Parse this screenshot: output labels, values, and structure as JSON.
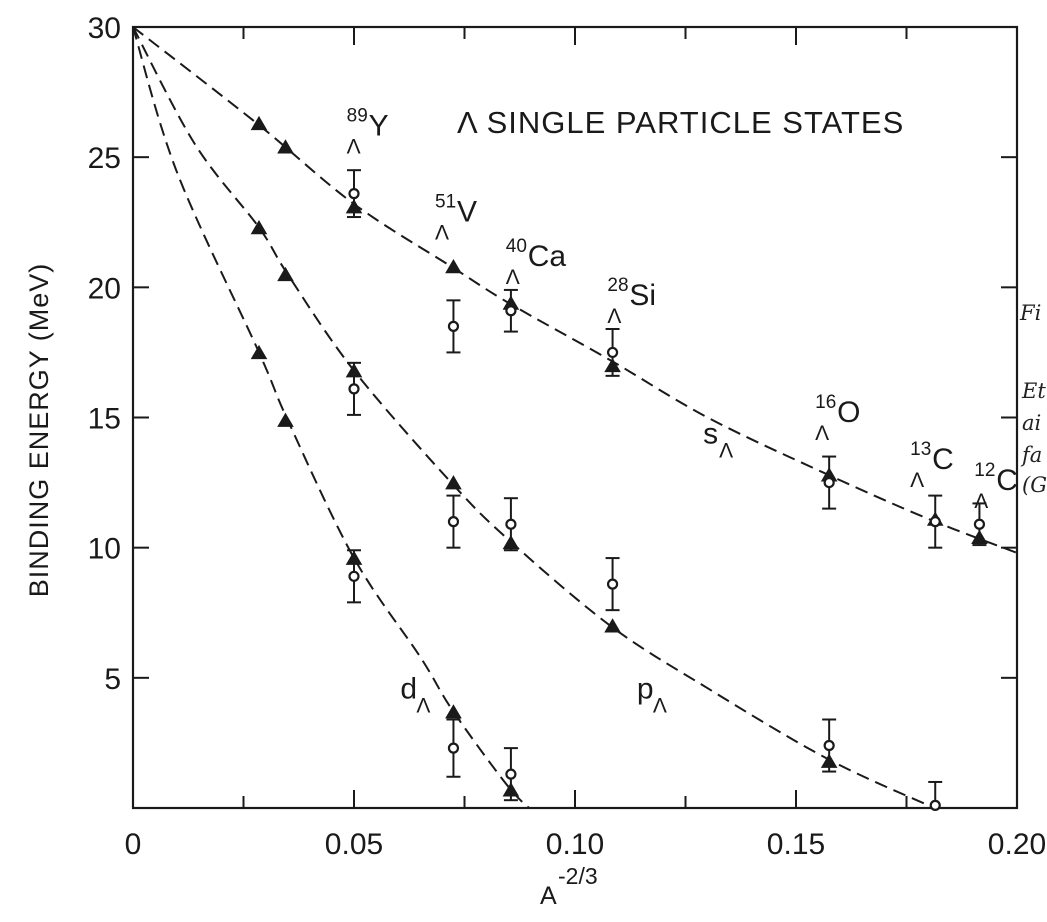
{
  "chart_data": {
    "type": "scatter",
    "title": "Λ SINGLE PARTICLE STATES",
    "xlabel": {
      "base": "A",
      "exponent": "-2/3"
    },
    "ylabel": "BINDING ENERGY (MeV)",
    "xlim": [
      0,
      0.2
    ],
    "ylim": [
      0,
      30
    ],
    "x_ticks": [
      {
        "value": 0,
        "label": "0"
      },
      {
        "value": 0.05,
        "label": "0.05"
      },
      {
        "value": 0.1,
        "label": "0.10"
      },
      {
        "value": 0.15,
        "label": "0.15"
      },
      {
        "value": 0.2,
        "label": "0.20"
      }
    ],
    "y_ticks": [
      {
        "value": 5,
        "label": "5"
      },
      {
        "value": 10,
        "label": "10"
      },
      {
        "value": 15,
        "label": "15"
      },
      {
        "value": 20,
        "label": "20"
      },
      {
        "value": 25,
        "label": "25"
      },
      {
        "value": 30,
        "label": "30"
      }
    ],
    "grid": false,
    "series": [
      {
        "name": "sΛ",
        "style": "dashed-curve",
        "curve": [
          [
            0,
            30
          ],
          [
            0.028,
            26.3
          ],
          [
            0.05,
            23.2
          ],
          [
            0.072,
            20.8
          ],
          [
            0.085,
            19.4
          ],
          [
            0.108,
            17.2
          ],
          [
            0.13,
            15.0
          ],
          [
            0.156,
            12.9
          ],
          [
            0.18,
            11.1
          ],
          [
            0.2,
            9.8
          ]
        ],
        "theory": [
          [
            0.0285,
            26.3
          ],
          [
            0.0345,
            25.4
          ],
          [
            0.05,
            23.1
          ],
          [
            0.0725,
            20.8
          ],
          [
            0.0855,
            19.4
          ],
          [
            0.1085,
            17.0
          ],
          [
            0.1575,
            12.8
          ],
          [
            0.1815,
            11.1
          ],
          [
            0.1915,
            10.4
          ]
        ],
        "experiment": [
          {
            "x": 0.05,
            "y": 23.6,
            "err": 0.9
          },
          {
            "x": 0.0855,
            "y": 19.1,
            "err": 0.8
          },
          {
            "x": 0.1085,
            "y": 17.5,
            "err": 0.9
          },
          {
            "x": 0.1575,
            "y": 12.5,
            "err": 1.0
          },
          {
            "x": 0.1815,
            "y": 11.0,
            "err": 1.0
          },
          {
            "x": 0.1915,
            "y": 10.9,
            "err": 0.8
          }
        ]
      },
      {
        "name": "pΛ",
        "style": "dashed-curve",
        "curve": [
          [
            0,
            30
          ],
          [
            0.014,
            25.5
          ],
          [
            0.0285,
            22.3
          ],
          [
            0.035,
            20.5
          ],
          [
            0.05,
            16.8
          ],
          [
            0.072,
            12.5
          ],
          [
            0.085,
            10.3
          ],
          [
            0.108,
            7.0
          ],
          [
            0.13,
            4.6
          ],
          [
            0.157,
            1.9
          ],
          [
            0.18,
            0.1
          ],
          [
            0.19,
            -0.6
          ]
        ],
        "theory": [
          [
            0.0285,
            22.3
          ],
          [
            0.0345,
            20.5
          ],
          [
            0.05,
            16.8
          ],
          [
            0.0725,
            12.5
          ],
          [
            0.0855,
            10.2
          ],
          [
            0.1085,
            7.0
          ],
          [
            0.1575,
            1.8
          ]
        ],
        "experiment": [
          {
            "x": 0.0725,
            "y": 18.5,
            "err": 1.0
          },
          {
            "x": 0.05,
            "y": 16.1,
            "err": 1.0
          },
          {
            "x": 0.0725,
            "y": 11.0,
            "err": 1.0
          },
          {
            "x": 0.0855,
            "y": 10.9,
            "err": 1.0
          },
          {
            "x": 0.1085,
            "y": 8.6,
            "err": 1.0
          },
          {
            "x": 0.1575,
            "y": 2.4,
            "err": 1.0
          },
          {
            "x": 0.1815,
            "y": 0.1,
            "err": 0.9
          }
        ]
      },
      {
        "name": "dΛ",
        "style": "dashed-curve",
        "curve": [
          [
            0,
            30
          ],
          [
            0.01,
            24.4
          ],
          [
            0.0285,
            17.5
          ],
          [
            0.035,
            14.9
          ],
          [
            0.05,
            9.6
          ],
          [
            0.065,
            5.8
          ],
          [
            0.0725,
            3.7
          ],
          [
            0.0855,
            0.7
          ],
          [
            0.092,
            -0.3
          ]
        ],
        "theory": [
          [
            0.0285,
            17.5
          ],
          [
            0.0345,
            14.9
          ],
          [
            0.05,
            9.6
          ],
          [
            0.0725,
            3.7
          ],
          [
            0.0855,
            0.7
          ]
        ],
        "experiment": [
          {
            "x": 0.05,
            "y": 8.9,
            "err": 1.0
          },
          {
            "x": 0.0725,
            "y": 2.3,
            "err": 1.1
          },
          {
            "x": 0.0855,
            "y": 1.3,
            "err": 1.0
          }
        ]
      }
    ],
    "nuclei": [
      {
        "mass": "89",
        "element": "Y",
        "sub": "Λ",
        "x": 0.0515,
        "y": 25.9
      },
      {
        "mass": "51",
        "element": "V",
        "sub": "Λ",
        "x": 0.0715,
        "y": 22.6
      },
      {
        "mass": "40",
        "element": "Ca",
        "sub": "Λ",
        "x": 0.0875,
        "y": 20.9
      },
      {
        "mass": "28",
        "element": "Si",
        "sub": "Λ",
        "x": 0.1105,
        "y": 19.4
      },
      {
        "mass": "16",
        "element": "O",
        "sub": "Λ",
        "x": 0.1575,
        "y": 14.9
      },
      {
        "mass": "13",
        "element": "C",
        "sub": "Λ",
        "x": 0.179,
        "y": 13.1
      },
      {
        "mass": "12",
        "element": "C",
        "sub": "Λ",
        "x": 0.1935,
        "y": 12.3
      }
    ],
    "curve_labels": [
      {
        "main": "s",
        "sub": "Λ",
        "x": 0.129,
        "y": 14.0
      },
      {
        "main": "p",
        "sub": "Λ",
        "x": 0.114,
        "y": 4.2
      },
      {
        "main": "d",
        "sub": "Λ",
        "x": 0.0605,
        "y": 4.2
      }
    ]
  },
  "margin_note": [
    "Fi",
    "Et",
    "ai",
    "fa",
    "(G"
  ]
}
